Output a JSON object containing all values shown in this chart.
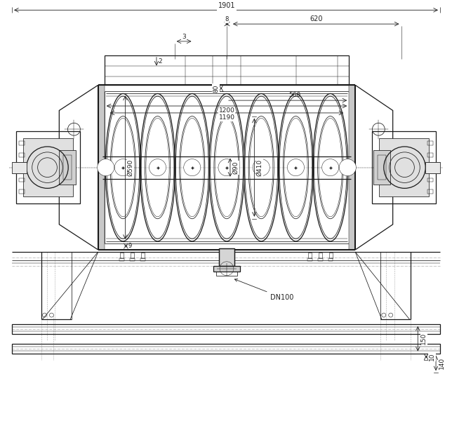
{
  "bg_color": "#ffffff",
  "line_color": "#1a1a1a",
  "dim_color": "#222222",
  "n_helices": 7,
  "figsize": [
    6.44,
    6.0
  ],
  "dpi": 100,
  "dim_1901": "1901",
  "dim_2": "2",
  "dim_8": "8",
  "dim_620": "620",
  "dim_3": "3",
  "dim_80": "80",
  "dim_560": "560",
  "dim_1200": "1200",
  "dim_1190": "1190",
  "dim_590": "Ø590",
  "dim_90": "Ø90",
  "dim_410": "Ø410",
  "dim_9": "9",
  "dn100": "DN100",
  "dim_150": "150",
  "dim_10": "10",
  "dim_140": "140"
}
